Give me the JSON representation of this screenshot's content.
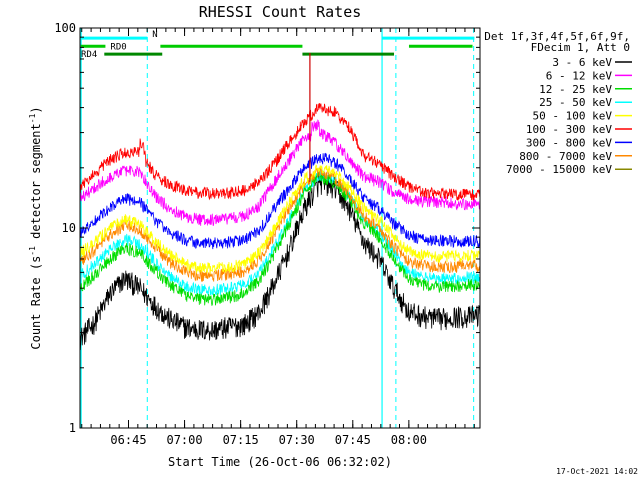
{
  "chart_data": {
    "type": "line",
    "title": "RHESSI Count Rates",
    "xlabel": "Start Time (26-Oct-06 06:32:02)",
    "ylabel_prefix": "Count Rate (s",
    "ylabel_sup1": "-1",
    "ylabel_mid": " detector segment",
    "ylabel_sup2": "-1",
    "ylabel_suffix": ")",
    "yscale": "log",
    "ylim": [
      1,
      100
    ],
    "y_ticks": [
      {
        "value": 1,
        "label": "1"
      },
      {
        "value": 10,
        "label": "10"
      },
      {
        "value": 100,
        "label": "100"
      }
    ],
    "x_unit": "minutes after 06:32:02",
    "xlim": [
      0,
      107
    ],
    "x_ticks": [
      {
        "value": 12.97,
        "label": "06:45"
      },
      {
        "value": 27.97,
        "label": "07:00"
      },
      {
        "value": 42.97,
        "label": "07:15"
      },
      {
        "value": 57.97,
        "label": "07:30"
      },
      {
        "value": 72.97,
        "label": "07:45"
      },
      {
        "value": 87.97,
        "label": "08:00"
      }
    ],
    "legend_header": [
      "Det 1f,3f,4f,5f,6f,9f,",
      "FDecim 1, Att 0"
    ],
    "legend_placement": "right, outside plot",
    "timestamp": "17-Oct-2021 14:02",
    "series": [
      {
        "name": "3 - 6 keV",
        "color": "#000000",
        "points": [
          [
            0,
            2.8
          ],
          [
            4,
            3.4
          ],
          [
            8,
            4.7
          ],
          [
            12,
            5.6
          ],
          [
            16,
            5.0
          ],
          [
            20,
            4.1
          ],
          [
            24,
            3.5
          ],
          [
            28,
            3.2
          ],
          [
            32,
            3.1
          ],
          [
            36,
            3.1
          ],
          [
            40,
            3.2
          ],
          [
            44,
            3.3
          ],
          [
            48,
            3.8
          ],
          [
            52,
            5.3
          ],
          [
            56,
            7.8
          ],
          [
            60,
            12.5
          ],
          [
            64,
            16.8
          ],
          [
            68,
            16.0
          ],
          [
            72,
            12.5
          ],
          [
            76,
            8.5
          ],
          [
            80,
            7.0
          ],
          [
            84,
            5.0
          ],
          [
            88,
            3.8
          ],
          [
            92,
            3.6
          ],
          [
            96,
            3.5
          ],
          [
            100,
            3.6
          ],
          [
            104,
            3.6
          ],
          [
            107,
            3.7
          ]
        ]
      },
      {
        "name": "6 - 12 keV",
        "color": "#ff00ff",
        "points": [
          [
            0,
            14.0
          ],
          [
            4,
            16.0
          ],
          [
            8,
            18.0
          ],
          [
            12,
            19.5
          ],
          [
            16,
            19.0
          ],
          [
            20,
            14.5
          ],
          [
            24,
            12.5
          ],
          [
            28,
            11.5
          ],
          [
            32,
            11.0
          ],
          [
            36,
            11.0
          ],
          [
            40,
            11.2
          ],
          [
            44,
            11.5
          ],
          [
            48,
            13.0
          ],
          [
            52,
            17.0
          ],
          [
            56,
            22.0
          ],
          [
            60,
            28.0
          ],
          [
            64,
            30.0
          ],
          [
            68,
            27.0
          ],
          [
            72,
            22.0
          ],
          [
            76,
            18.0
          ],
          [
            80,
            17.0
          ],
          [
            84,
            15.0
          ],
          [
            88,
            14.0
          ],
          [
            92,
            13.5
          ],
          [
            96,
            13.5
          ],
          [
            100,
            13.3
          ],
          [
            104,
            13.2
          ],
          [
            107,
            13.2
          ]
        ]
      },
      {
        "name": "12 - 25 keV",
        "color": "#00dd00",
        "points": [
          [
            0,
            5.0
          ],
          [
            4,
            5.8
          ],
          [
            8,
            7.0
          ],
          [
            12,
            8.0
          ],
          [
            16,
            7.5
          ],
          [
            20,
            6.2
          ],
          [
            24,
            5.2
          ],
          [
            28,
            4.6
          ],
          [
            32,
            4.4
          ],
          [
            36,
            4.4
          ],
          [
            40,
            4.5
          ],
          [
            44,
            4.7
          ],
          [
            48,
            5.5
          ],
          [
            52,
            7.5
          ],
          [
            56,
            10.5
          ],
          [
            60,
            15.0
          ],
          [
            64,
            18.0
          ],
          [
            68,
            17.0
          ],
          [
            72,
            14.0
          ],
          [
            76,
            10.5
          ],
          [
            80,
            9.0
          ],
          [
            84,
            7.0
          ],
          [
            88,
            5.5
          ],
          [
            92,
            5.2
          ],
          [
            96,
            5.1
          ],
          [
            100,
            5.1
          ],
          [
            104,
            5.2
          ],
          [
            107,
            5.2
          ]
        ]
      },
      {
        "name": "25 - 50 keV",
        "color": "#00ffff",
        "points": [
          [
            0,
            5.8
          ],
          [
            4,
            6.6
          ],
          [
            8,
            7.8
          ],
          [
            12,
            8.8
          ],
          [
            16,
            8.3
          ],
          [
            20,
            6.8
          ],
          [
            24,
            5.8
          ],
          [
            28,
            5.1
          ],
          [
            32,
            4.9
          ],
          [
            36,
            4.9
          ],
          [
            40,
            5.0
          ],
          [
            44,
            5.2
          ],
          [
            48,
            6.0
          ],
          [
            52,
            8.0
          ],
          [
            56,
            11.0
          ],
          [
            60,
            15.5
          ],
          [
            64,
            18.5
          ],
          [
            68,
            17.5
          ],
          [
            72,
            14.5
          ],
          [
            76,
            11.0
          ],
          [
            80,
            9.5
          ],
          [
            84,
            7.5
          ],
          [
            88,
            6.0
          ],
          [
            92,
            5.7
          ],
          [
            96,
            5.6
          ],
          [
            100,
            5.6
          ],
          [
            104,
            5.7
          ],
          [
            107,
            5.7
          ]
        ]
      },
      {
        "name": "50 - 100 keV",
        "color": "#ffff00",
        "points": [
          [
            0,
            7.5
          ],
          [
            4,
            8.5
          ],
          [
            8,
            10.0
          ],
          [
            12,
            11.0
          ],
          [
            16,
            10.5
          ],
          [
            20,
            8.6
          ],
          [
            24,
            7.4
          ],
          [
            28,
            6.6
          ],
          [
            32,
            6.3
          ],
          [
            36,
            6.3
          ],
          [
            40,
            6.4
          ],
          [
            44,
            6.6
          ],
          [
            48,
            7.6
          ],
          [
            52,
            10.0
          ],
          [
            56,
            13.5
          ],
          [
            60,
            17.5
          ],
          [
            64,
            20.0
          ],
          [
            68,
            19.0
          ],
          [
            72,
            16.0
          ],
          [
            76,
            12.5
          ],
          [
            80,
            11.0
          ],
          [
            84,
            9.0
          ],
          [
            88,
            7.6
          ],
          [
            92,
            7.3
          ],
          [
            96,
            7.2
          ],
          [
            100,
            7.2
          ],
          [
            104,
            7.3
          ],
          [
            107,
            7.3
          ]
        ]
      },
      {
        "name": "100 - 300 keV",
        "color": "#ff0000",
        "points": [
          [
            0,
            16.0
          ],
          [
            4,
            19.0
          ],
          [
            8,
            22.0
          ],
          [
            12,
            24.0
          ],
          [
            16,
            24.0
          ],
          [
            20,
            18.5
          ],
          [
            24,
            16.5
          ],
          [
            28,
            15.5
          ],
          [
            32,
            15.0
          ],
          [
            36,
            15.0
          ],
          [
            40,
            15.0
          ],
          [
            44,
            15.5
          ],
          [
            48,
            17.0
          ],
          [
            52,
            21.0
          ],
          [
            56,
            27.0
          ],
          [
            60,
            34.0
          ],
          [
            64,
            40.0
          ],
          [
            68,
            38.0
          ],
          [
            72,
            32.0
          ],
          [
            76,
            23.0
          ],
          [
            80,
            21.0
          ],
          [
            84,
            18.0
          ],
          [
            88,
            16.0
          ],
          [
            92,
            15.2
          ],
          [
            96,
            15.0
          ],
          [
            100,
            14.8
          ],
          [
            104,
            14.7
          ],
          [
            107,
            14.7
          ]
        ]
      },
      {
        "name": "300 - 800 keV",
        "color": "#0000ff",
        "points": [
          [
            0,
            9.5
          ],
          [
            4,
            11.0
          ],
          [
            8,
            12.5
          ],
          [
            12,
            14.0
          ],
          [
            16,
            13.5
          ],
          [
            20,
            11.0
          ],
          [
            24,
            9.5
          ],
          [
            28,
            8.7
          ],
          [
            32,
            8.4
          ],
          [
            36,
            8.4
          ],
          [
            40,
            8.5
          ],
          [
            44,
            8.7
          ],
          [
            48,
            9.8
          ],
          [
            52,
            12.5
          ],
          [
            56,
            16.0
          ],
          [
            60,
            20.0
          ],
          [
            64,
            22.5
          ],
          [
            68,
            21.5
          ],
          [
            72,
            18.0
          ],
          [
            76,
            14.0
          ],
          [
            80,
            12.5
          ],
          [
            84,
            10.5
          ],
          [
            88,
            9.2
          ],
          [
            92,
            8.8
          ],
          [
            96,
            8.7
          ],
          [
            100,
            8.6
          ],
          [
            104,
            8.6
          ],
          [
            107,
            8.6
          ]
        ]
      },
      {
        "name": "800 - 7000 keV",
        "color": "#ff8800",
        "points": [
          [
            0,
            6.8
          ],
          [
            4,
            7.8
          ],
          [
            8,
            9.2
          ],
          [
            12,
            10.4
          ],
          [
            16,
            9.9
          ],
          [
            20,
            8.0
          ],
          [
            24,
            6.8
          ],
          [
            28,
            6.1
          ],
          [
            32,
            5.8
          ],
          [
            36,
            5.8
          ],
          [
            40,
            5.9
          ],
          [
            44,
            6.1
          ],
          [
            48,
            7.0
          ],
          [
            52,
            9.3
          ],
          [
            56,
            12.5
          ],
          [
            60,
            16.5
          ],
          [
            64,
            19.0
          ],
          [
            68,
            18.0
          ],
          [
            72,
            15.0
          ],
          [
            76,
            11.5
          ],
          [
            80,
            10.0
          ],
          [
            84,
            8.0
          ],
          [
            88,
            6.8
          ],
          [
            92,
            6.5
          ],
          [
            96,
            6.4
          ],
          [
            100,
            6.4
          ],
          [
            104,
            6.5
          ],
          [
            107,
            6.5
          ]
        ]
      },
      {
        "name": "7000 - 15000 keV",
        "color": "#888800",
        "points": []
      }
    ],
    "annotations": {
      "dashed_lines_x": [
        18.0,
        84.5,
        105.3
      ],
      "solid_lines_x": [
        0.3,
        80.8
      ],
      "segments": [
        {
          "label": "RD0",
          "y": 81,
          "color": "#00cc00",
          "spans": [
            [
              0.2,
              6.8
            ],
            [
              21.5,
              59.5
            ],
            [
              88.0,
              105.0
            ]
          ]
        },
        {
          "label": "RD4",
          "y": 74,
          "color": "#008800",
          "spans": [
            [
              6.5,
              22.0
            ],
            [
              59.5,
              84.0
            ]
          ]
        },
        {
          "label": "N",
          "y": 89,
          "color": "#00ffff",
          "spans": [
            [
              0.2,
              18.0
            ],
            [
              80.8,
              105.5
            ]
          ]
        }
      ],
      "spike": {
        "x": 61.5,
        "ymin": 17.0,
        "ymax": 75.0,
        "color": "#cc0000"
      }
    }
  }
}
